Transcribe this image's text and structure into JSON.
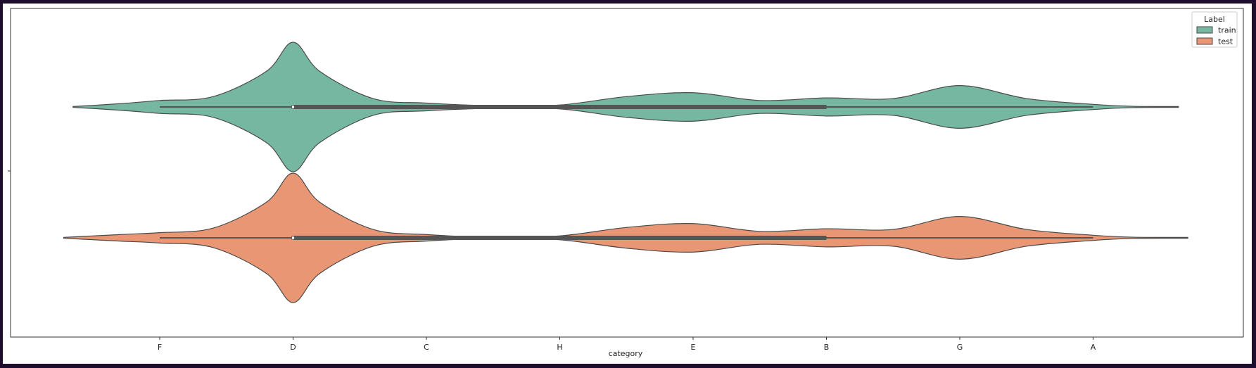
{
  "chart_data": {
    "type": "violin",
    "orientation": "horizontal",
    "xlabel": "category",
    "ylabel": "",
    "categories": [
      "F",
      "D",
      "C",
      "H",
      "E",
      "B",
      "G",
      "A"
    ],
    "legend": {
      "title": "Label",
      "position": "top-right"
    },
    "series": [
      {
        "name": "train",
        "color": "#76b7a1",
        "density": {
          "x": [
            -0.65,
            -0.3,
            0.0,
            0.4,
            0.8,
            1.0,
            1.2,
            1.6,
            2.0,
            2.5,
            3.0,
            3.5,
            4.0,
            4.5,
            5.0,
            5.5,
            6.0,
            6.5,
            7.0,
            7.3,
            7.64
          ],
          "y": [
            0.0,
            0.05,
            0.1,
            0.16,
            0.55,
            1.0,
            0.55,
            0.13,
            0.06,
            0.02,
            0.03,
            0.16,
            0.22,
            0.1,
            0.14,
            0.13,
            0.33,
            0.13,
            0.04,
            0.01,
            0.0
          ]
        },
        "box": {
          "q1": 1.0,
          "median": 1.0,
          "q3": 5.0,
          "whisker_low": 0.0,
          "whisker_high": 7.0
        }
      },
      {
        "name": "test",
        "color": "#e99674",
        "density": {
          "x": [
            -0.72,
            -0.3,
            0.0,
            0.4,
            0.8,
            1.0,
            1.2,
            1.6,
            2.0,
            2.5,
            3.0,
            3.5,
            4.0,
            4.5,
            5.0,
            5.5,
            6.0,
            6.5,
            7.0,
            7.3,
            7.71
          ],
          "y": [
            0.0,
            0.05,
            0.08,
            0.15,
            0.55,
            1.0,
            0.55,
            0.13,
            0.05,
            0.01,
            0.03,
            0.16,
            0.22,
            0.1,
            0.14,
            0.13,
            0.33,
            0.13,
            0.04,
            0.01,
            0.0
          ]
        },
        "box": {
          "q1": 1.0,
          "median": 1.0,
          "q3": 5.0,
          "whisker_low": 0.0,
          "whisker_high": 7.0
        }
      }
    ]
  }
}
